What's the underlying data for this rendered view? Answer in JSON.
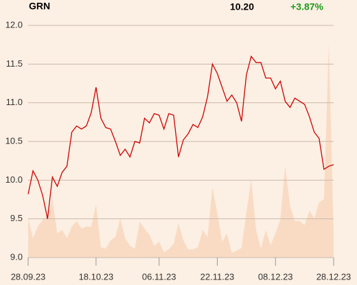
{
  "header": {
    "symbol": "GRN",
    "last": "10.20",
    "change": "+3.87%"
  },
  "chart_data": {
    "type": "line",
    "categories": [
      "28.09.23",
      null,
      null,
      null,
      null,
      null,
      null,
      null,
      null,
      null,
      null,
      null,
      null,
      null,
      "18.10.23",
      null,
      null,
      null,
      null,
      null,
      null,
      null,
      null,
      null,
      null,
      null,
      null,
      "06.11.23",
      null,
      null,
      null,
      null,
      null,
      null,
      null,
      null,
      null,
      null,
      null,
      "22.11.23",
      null,
      null,
      null,
      null,
      null,
      null,
      null,
      null,
      null,
      null,
      null,
      "08.12.23",
      null,
      null,
      null,
      null,
      null,
      null,
      null,
      null,
      null,
      null,
      null,
      "28.12.23"
    ],
    "series": [
      {
        "color": "#cc0000",
        "values": [
          9.82,
          10.12,
          10.0,
          9.8,
          9.5,
          10.04,
          9.92,
          10.1,
          10.18,
          10.62,
          10.7,
          10.66,
          10.7,
          10.87,
          11.2,
          10.8,
          10.68,
          10.66,
          10.5,
          10.32,
          10.4,
          10.3,
          10.5,
          10.48,
          10.8,
          10.74,
          10.86,
          10.84,
          10.66,
          10.86,
          10.84,
          10.3,
          10.52,
          10.6,
          10.72,
          10.68,
          10.82,
          11.08,
          11.5,
          11.38,
          11.2,
          11.02,
          11.1,
          11.0,
          10.76,
          11.36,
          11.6,
          11.52,
          11.52,
          11.32,
          11.32,
          11.18,
          11.28,
          11.02,
          10.94,
          11.06,
          11.02,
          10.98,
          10.82,
          10.62,
          10.54,
          10.14,
          10.18,
          10.2
        ]
      }
    ],
    "volume": {
      "color": "#f9dbc4",
      "values": [
        57,
        28,
        45,
        55,
        60,
        85,
        35,
        40,
        28,
        45,
        53,
        42,
        45,
        45,
        77,
        15,
        13,
        25,
        30,
        57,
        28,
        17,
        13,
        52,
        42,
        33,
        17,
        23,
        8,
        12,
        20,
        50,
        25,
        12,
        12,
        15,
        40,
        30,
        102,
        65,
        23,
        35,
        7,
        10,
        14,
        65,
        113,
        40,
        13,
        40,
        18,
        35,
        55,
        133,
        75,
        53,
        53,
        47,
        68,
        57,
        80,
        85,
        310,
        30
      ]
    },
    "ylim": [
      9,
      12
    ],
    "yticks": [
      {
        "value": 9,
        "label": "9.0"
      },
      9.5,
      {
        "value": 10,
        "label": "10.0"
      },
      10.5,
      {
        "value": 11,
        "label": "11.0"
      },
      11.5,
      {
        "value": 12,
        "label": "12.0"
      }
    ],
    "grid": true
  }
}
